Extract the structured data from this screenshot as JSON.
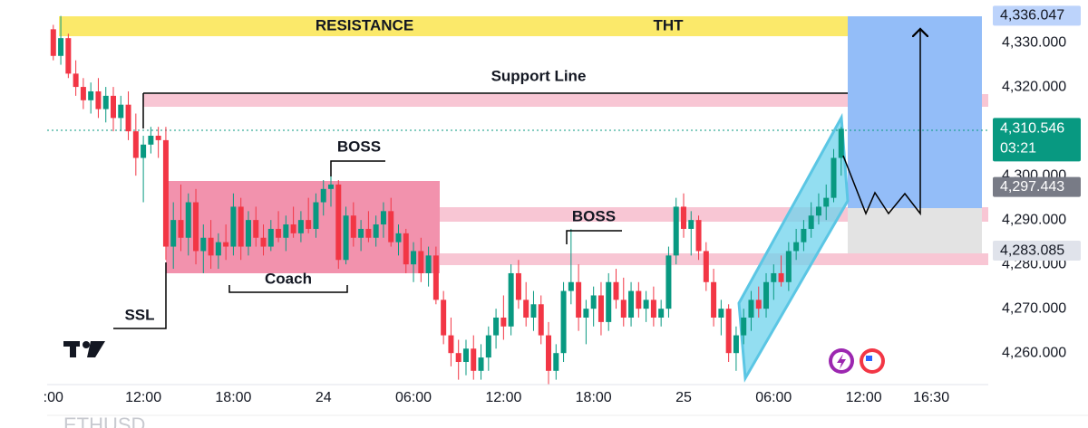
{
  "chart_data": {
    "type": "candlestick",
    "symbol": "ETHUSD",
    "up_color": "#089981",
    "down_color": "#f23645",
    "xlim": [
      -0.41,
      62.3
    ],
    "xticks": [
      {
        "value": 0,
        "label": ":00"
      },
      {
        "value": 6,
        "label": "12:00"
      },
      {
        "value": 12,
        "label": "18:00"
      },
      {
        "value": 18,
        "label": "24"
      },
      {
        "value": 24,
        "label": "06:00"
      },
      {
        "value": 30,
        "label": "12:00"
      },
      {
        "value": 36,
        "label": "18:00"
      },
      {
        "value": 42,
        "label": "25"
      },
      {
        "value": 48,
        "label": "06:00"
      },
      {
        "value": 54,
        "label": "12:00"
      },
      {
        "value": 58.5,
        "label": "16:30"
      }
    ],
    "ylim": [
      4252.9,
      4339.6
    ],
    "yticks": [
      {
        "value": 4330,
        "label": "4,330.000"
      },
      {
        "value": 4320,
        "label": "4,320.000"
      },
      {
        "value": 4300,
        "label": "4,300.000"
      },
      {
        "value": 4290,
        "label": "4,290.000"
      },
      {
        "value": 4280,
        "label": "4,280.000"
      },
      {
        "value": 4270,
        "label": "4,270.000"
      },
      {
        "value": 4260,
        "label": "4,260.000"
      }
    ],
    "price_tags": [
      {
        "value": 4336.047,
        "label": "4,336.047",
        "color": "#bcd3fb",
        "text_color": "#131722"
      },
      {
        "value": 4310.546,
        "label": "4,310.546",
        "color": "#089981",
        "text_color": "#ffffff"
      },
      {
        "value": 4297.443,
        "label": "4,297.443",
        "color": "#787b86",
        "text_color": "#ffffff"
      },
      {
        "value": 4283.085,
        "label": "4,283.085",
        "color": "#e0e3eb",
        "text_color": "#131722"
      }
    ],
    "countdown": "03:21",
    "annotations": {
      "resistance": "RESISTANCE",
      "tht": "THT",
      "support": "Support Line",
      "boss_1": "BOSS",
      "boss_2": "BOSS",
      "coach": "Coach",
      "ssl": "SSL"
    },
    "x": [
      0,
      0.5,
      1,
      1.5,
      2,
      2.5,
      3,
      3.5,
      4,
      4.5,
      5,
      5.5,
      6,
      6.5,
      7,
      7.5,
      8,
      8.5,
      9,
      9.5,
      10,
      10.5,
      11,
      11.5,
      12,
      12.5,
      13,
      13.5,
      14,
      14.5,
      15,
      15.5,
      16,
      16.5,
      17,
      17.5,
      18,
      18.5,
      19,
      19.5,
      20,
      20.5,
      21,
      21.5,
      22,
      22.5,
      23,
      23.5,
      24,
      24.5,
      25,
      25.5,
      26,
      26.5,
      27,
      27.5,
      28,
      28.5,
      29,
      29.5,
      30,
      30.5,
      31,
      31.5,
      32,
      32.5,
      33,
      33.5,
      34,
      34.5,
      35,
      35.5,
      36,
      36.5,
      37,
      37.5,
      38,
      38.5,
      39,
      39.5,
      40,
      40.5,
      41,
      41.5,
      42,
      42.5,
      43,
      43.5,
      44,
      44.5,
      45,
      45.5,
      46,
      46.5,
      47,
      47.5,
      48,
      48.5,
      49,
      49.5,
      50,
      50.5,
      51,
      51.5,
      52,
      52.5
    ],
    "open": [
      4333,
      4327,
      4331,
      4323,
      4320,
      4317,
      4319,
      4315,
      4318,
      4313,
      4316,
      4310,
      4304,
      4307,
      4309,
      4308,
      4284,
      4290,
      4286,
      4294,
      4283,
      4286,
      4282,
      4285,
      4284,
      4293,
      4284,
      4290,
      4286,
      4284,
      4288,
      4286,
      4289,
      4287,
      4290,
      4288,
      4294,
      4297,
      4298,
      4281,
      4291,
      4286,
      4288,
      4286,
      4289,
      4292,
      4285,
      4287,
      4280,
      4283,
      4278,
      4282,
      4272,
      4264,
      4260,
      4258,
      4261,
      4256,
      4259,
      4264,
      4268,
      4266,
      4278,
      4272,
      4268,
      4271,
      4264,
      4256,
      4260,
      4274,
      4276,
      4268,
      4270,
      4273,
      4267,
      4276,
      4272,
      4268,
      4274,
      4270,
      4272,
      4268,
      4270,
      4282,
      4293,
      4288,
      4290,
      4283,
      4276,
      4268,
      4270,
      4260,
      4264,
      4268,
      4272,
      4270,
      4276,
      4278,
      4276,
      4283,
      4285,
      4288,
      4291,
      4293,
      4295,
      4304
    ],
    "high": [
      4334,
      4336,
      4332,
      4326,
      4322,
      4321,
      4322,
      4320,
      4320,
      4318,
      4319,
      4314,
      4309,
      4311,
      4311,
      4311,
      4294,
      4298,
      4296,
      4297,
      4289,
      4290,
      4287,
      4289,
      4296,
      4295,
      4292,
      4293,
      4289,
      4290,
      4292,
      4291,
      4293,
      4292,
      4295,
      4296,
      4299,
      4303,
      4299,
      4293,
      4294,
      4290,
      4292,
      4291,
      4294,
      4295,
      4289,
      4288,
      4285,
      4286,
      4284,
      4284,
      4274,
      4268,
      4263,
      4263,
      4264,
      4262,
      4266,
      4270,
      4273,
      4280,
      4281,
      4276,
      4274,
      4273,
      4267,
      4262,
      4276,
      4288,
      4280,
      4272,
      4275,
      4276,
      4278,
      4279,
      4277,
      4276,
      4276,
      4274,
      4275,
      4272,
      4284,
      4295,
      4296,
      4292,
      4291,
      4285,
      4279,
      4272,
      4271,
      4266,
      4270,
      4274,
      4275,
      4278,
      4280,
      4282,
      4285,
      4288,
      4290,
      4294,
      4296,
      4298,
      4306,
      4311
    ],
    "low": [
      4326,
      4325,
      4322,
      4318,
      4315,
      4314,
      4313,
      4312,
      4310,
      4310,
      4308,
      4300,
      4294,
      4305,
      4304,
      4281,
      4279,
      4283,
      4282,
      4280,
      4278,
      4279,
      4279,
      4281,
      4282,
      4281,
      4282,
      4284,
      4282,
      4283,
      4285,
      4283,
      4286,
      4285,
      4287,
      4286,
      4291,
      4293,
      4279,
      4280,
      4284,
      4283,
      4285,
      4284,
      4286,
      4284,
      4282,
      4278,
      4276,
      4276,
      4275,
      4271,
      4262,
      4257,
      4254,
      4255,
      4254,
      4254,
      4256,
      4261,
      4263,
      4264,
      4270,
      4266,
      4265,
      4262,
      4253,
      4254,
      4258,
      4271,
      4265,
      4262,
      4266,
      4264,
      4265,
      4270,
      4266,
      4266,
      4268,
      4267,
      4266,
      4266,
      4268,
      4280,
      4286,
      4282,
      4281,
      4274,
      4266,
      4264,
      4258,
      4256,
      4262,
      4265,
      4268,
      4268,
      4272,
      4275,
      4274,
      4281,
      4283,
      4286,
      4289,
      4290,
      4294,
      4300
    ],
    "close": [
      4327,
      4331,
      4323,
      4320,
      4317,
      4319,
      4315,
      4318,
      4313,
      4316,
      4310,
      4304,
      4307,
      4309,
      4308,
      4284,
      4290,
      4286,
      4294,
      4283,
      4286,
      4282,
      4285,
      4284,
      4293,
      4284,
      4290,
      4286,
      4284,
      4288,
      4286,
      4289,
      4287,
      4290,
      4288,
      4294,
      4297,
      4298,
      4281,
      4291,
      4286,
      4288,
      4286,
      4289,
      4292,
      4285,
      4287,
      4280,
      4283,
      4278,
      4282,
      4272,
      4264,
      4260,
      4258,
      4261,
      4256,
      4259,
      4264,
      4268,
      4266,
      4278,
      4272,
      4268,
      4271,
      4264,
      4256,
      4260,
      4274,
      4276,
      4268,
      4270,
      4273,
      4267,
      4276,
      4272,
      4268,
      4274,
      4270,
      4272,
      4268,
      4270,
      4282,
      4293,
      4288,
      4290,
      4283,
      4276,
      4268,
      4270,
      4260,
      4264,
      4268,
      4272,
      4270,
      4276,
      4278,
      4276,
      4283,
      4285,
      4288,
      4291,
      4293,
      4295,
      4304,
      4310.546
    ]
  }
}
